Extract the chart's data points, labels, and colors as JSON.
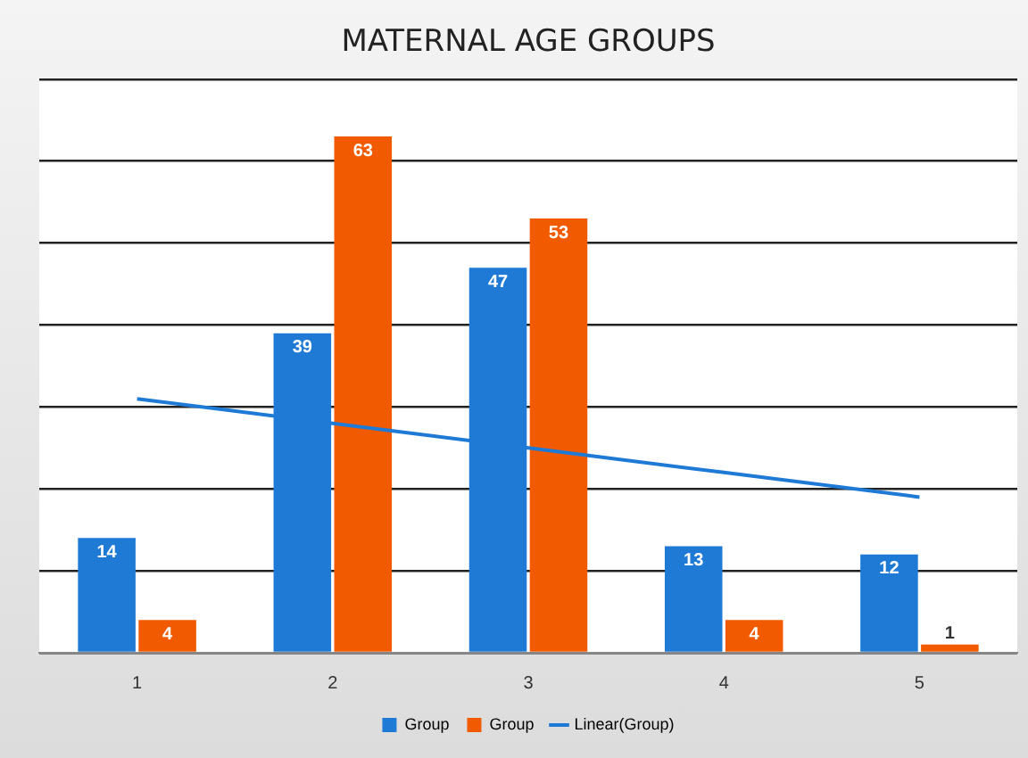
{
  "chart_data": {
    "type": "bar",
    "title": "MATERNAL AGE GROUPS",
    "categories": [
      "1",
      "2",
      "3",
      "4",
      "5"
    ],
    "series": [
      {
        "name": "Group",
        "color": "#1f7ad6",
        "values": [
          14,
          39,
          47,
          13,
          12
        ],
        "value_labels": [
          "14",
          "39",
          "47",
          "13",
          "12"
        ]
      },
      {
        "name": "Group",
        "color": "#f25a00",
        "values": [
          4,
          63,
          53,
          4,
          1
        ],
        "value_labels": [
          "4",
          "63",
          "53",
          "4",
          "1"
        ]
      },
      {
        "name": "Linear(Group)",
        "type": "line",
        "color": "#1f7ad6",
        "values": [
          31,
          28,
          25,
          22,
          19
        ]
      }
    ],
    "ylim": [
      0,
      70
    ],
    "yticks": [
      {
        "value": 0,
        "label": null
      },
      {
        "value": 10,
        "label": null
      },
      {
        "value": 20,
        "label": null
      },
      {
        "value": 30,
        "label": null
      },
      {
        "value": 40,
        "label": null
      },
      {
        "value": 50,
        "label": null
      },
      {
        "value": 60,
        "label": null
      },
      {
        "value": 70,
        "label": null
      }
    ],
    "tick_labels": "x",
    "grid": "y",
    "legend": "bottom"
  }
}
